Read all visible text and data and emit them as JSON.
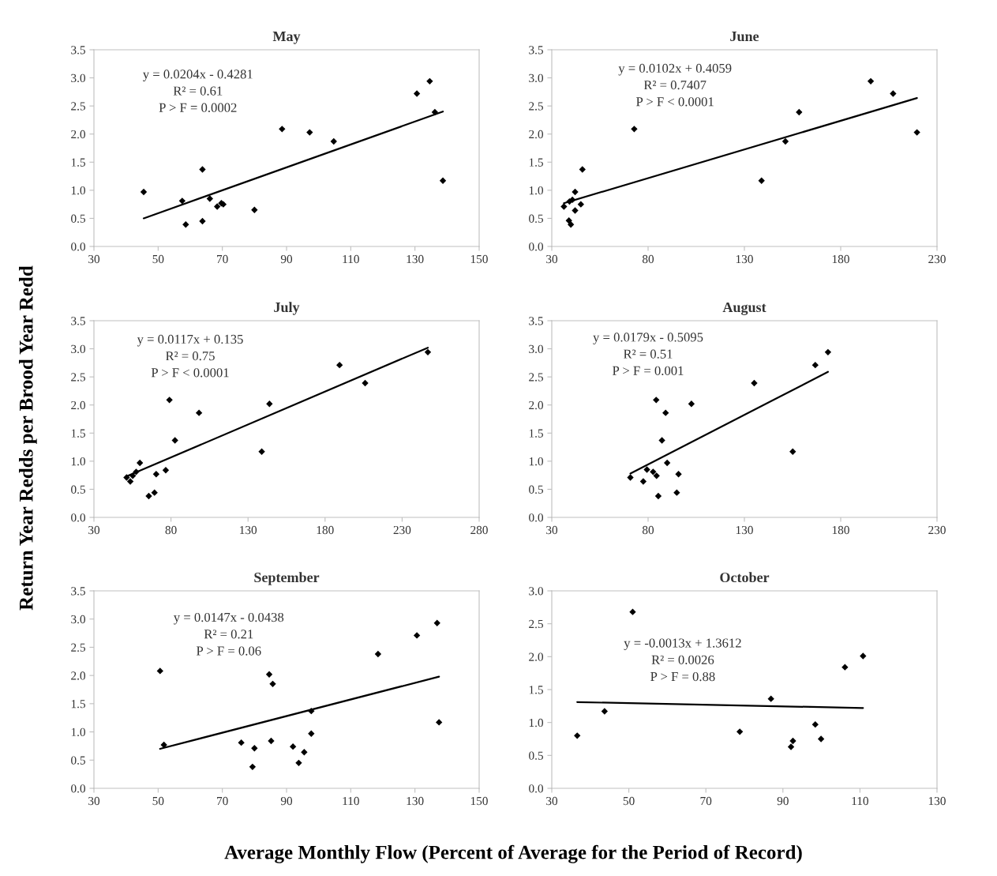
{
  "chart_data": [
    {
      "type": "scatter",
      "title": "May",
      "xlabel": "Average Monthly Flow (Percent of Average for the Period of Record)",
      "ylabel": "Return Year Redds per Brood Year Redd",
      "xlim": [
        30,
        150
      ],
      "xticks": [
        30,
        50,
        70,
        90,
        110,
        130,
        150
      ],
      "ylim": [
        0,
        3.5
      ],
      "yticks": [
        {
          "value": 0,
          "label": "0.0"
        },
        0.5,
        {
          "value": 1,
          "label": "1.0"
        },
        1.5,
        {
          "value": 2,
          "label": "2.0"
        },
        2.5,
        {
          "value": 3,
          "label": "3.0"
        },
        3.5
      ],
      "grid": false,
      "legend": false,
      "annotations": [
        "y = 0.0204x - 0.4281",
        "R² = 0.61",
        "P > F = 0.0002"
      ],
      "series": [
        {
          "marker": "diamond",
          "color": "#000000",
          "x": [
            45.5,
            57.5,
            58.6,
            63.8,
            63.8,
            66.1,
            68.4,
            69.7,
            70.3,
            80.0,
            88.6,
            97.2,
            104.7,
            130.6,
            134.6,
            136.2,
            138.7
          ],
          "values": [
            0.97,
            0.81,
            0.39,
            1.37,
            0.45,
            0.85,
            0.71,
            0.77,
            0.75,
            0.65,
            2.09,
            2.03,
            1.87,
            2.72,
            2.94,
            2.39,
            1.17
          ]
        },
        {
          "type": "line",
          "marker": "none",
          "color": "#000000",
          "x": [
            45.5,
            138.7
          ],
          "values": [
            0.5,
            2.4
          ]
        }
      ]
    },
    {
      "type": "scatter",
      "title": "June",
      "xlim": [
        30,
        230
      ],
      "xticks": [
        30,
        80,
        130,
        180,
        230
      ],
      "ylim": [
        0,
        3.5
      ],
      "yticks": [
        {
          "value": 0,
          "label": "0.0"
        },
        0.5,
        {
          "value": 1,
          "label": "1.0"
        },
        1.5,
        {
          "value": 2,
          "label": "2.0"
        },
        2.5,
        {
          "value": 3,
          "label": "3.0"
        },
        3.5
      ],
      "grid": false,
      "legend": false,
      "annotations": [
        "y = 0.0102x + 0.4059",
        "R² = 0.7407",
        "P > F < 0.0001"
      ],
      "series": [
        {
          "marker": "diamond",
          "color": "#000000",
          "x": [
            36.3,
            39.2,
            38.9,
            39.9,
            40.7,
            42.1,
            42.1,
            45.1,
            45.9,
            72.8,
            138.9,
            151.3,
            158.4,
            195.6,
            207.2,
            219.6
          ],
          "values": [
            0.71,
            0.8,
            0.46,
            0.39,
            0.83,
            0.97,
            0.64,
            0.75,
            1.37,
            2.09,
            1.17,
            1.87,
            2.39,
            2.94,
            2.72,
            2.03
          ]
        },
        {
          "type": "line",
          "marker": "none",
          "color": "#000000",
          "x": [
            36.3,
            219.6
          ],
          "values": [
            0.77,
            2.64
          ]
        }
      ]
    },
    {
      "type": "scatter",
      "title": "July",
      "xlim": [
        30,
        280
      ],
      "xticks": [
        30,
        80,
        130,
        180,
        230,
        280
      ],
      "ylim": [
        0,
        3.5
      ],
      "yticks": [
        {
          "value": 0,
          "label": "0.0"
        },
        0.5,
        {
          "value": 1,
          "label": "1.0"
        },
        1.5,
        {
          "value": 2,
          "label": "2.0"
        },
        2.5,
        {
          "value": 3,
          "label": "3.0"
        },
        3.5
      ],
      "grid": false,
      "legend": false,
      "annotations": [
        "y = 0.0117x + 0.135",
        "R² = 0.75",
        "P > F < 0.0001"
      ],
      "series": [
        {
          "marker": "diamond",
          "color": "#000000",
          "x": [
            51.2,
            53.6,
            55.2,
            57.4,
            59.8,
            65.6,
            69.3,
            70.4,
            76.6,
            79.0,
            82.6,
            98.2,
            138.9,
            143.9,
            189.4,
            206.0,
            246.7
          ],
          "values": [
            0.71,
            0.64,
            0.74,
            0.81,
            0.97,
            0.38,
            0.44,
            0.77,
            0.84,
            2.09,
            1.37,
            1.86,
            1.17,
            2.02,
            2.71,
            2.39,
            2.94
          ]
        },
        {
          "type": "line",
          "marker": "none",
          "color": "#000000",
          "x": [
            51.2,
            246.7
          ],
          "values": [
            0.73,
            3.02
          ]
        }
      ]
    },
    {
      "type": "scatter",
      "title": "August",
      "xlim": [
        30,
        230
      ],
      "xticks": [
        30,
        80,
        130,
        180,
        230
      ],
      "ylim": [
        0,
        3.5
      ],
      "yticks": [
        {
          "value": 0,
          "label": "0.0"
        },
        0.5,
        {
          "value": 1,
          "label": "1.0"
        },
        1.5,
        {
          "value": 2,
          "label": "2.0"
        },
        2.5,
        {
          "value": 3,
          "label": "3.0"
        },
        3.5
      ],
      "grid": false,
      "legend": false,
      "annotations": [
        "y = 0.0179x - 0.5095",
        "R² = 0.51",
        "P > F = 0.001"
      ],
      "series": [
        {
          "marker": "diamond",
          "color": "#000000",
          "x": [
            70.8,
            77.5,
            79.4,
            82.6,
            84.4,
            84.2,
            85.3,
            87.2,
            89.1,
            89.9,
            94.9,
            95.8,
            102.5,
            135.1,
            155.1,
            166.8,
            173.4
          ],
          "values": [
            0.71,
            0.64,
            0.85,
            0.81,
            0.74,
            2.09,
            0.38,
            1.37,
            1.86,
            0.97,
            0.44,
            0.77,
            2.02,
            2.39,
            1.17,
            2.71,
            2.94
          ]
        },
        {
          "type": "line",
          "marker": "none",
          "color": "#000000",
          "x": [
            70.8,
            173.4
          ],
          "values": [
            0.78,
            2.59
          ]
        }
      ]
    },
    {
      "type": "scatter",
      "title": "September",
      "xlim": [
        30,
        150
      ],
      "xticks": [
        30,
        50,
        70,
        90,
        110,
        130,
        150
      ],
      "ylim": [
        0,
        3.5
      ],
      "yticks": [
        {
          "value": 0,
          "label": "0.0"
        },
        0.5,
        {
          "value": 1,
          "label": "1.0"
        },
        1.5,
        {
          "value": 2,
          "label": "2.0"
        },
        2.5,
        {
          "value": 3,
          "label": "3.0"
        },
        3.5
      ],
      "grid": false,
      "legend": false,
      "annotations": [
        "y = 0.0147x - 0.0438",
        "R² = 0.21",
        "P > F = 0.06"
      ],
      "series": [
        {
          "marker": "diamond",
          "color": "#000000",
          "x": [
            50.6,
            51.8,
            75.9,
            80.0,
            79.4,
            84.6,
            85.2,
            85.7,
            92.0,
            93.8,
            95.5,
            97.7,
            97.7,
            118.5,
            130.6,
            136.9,
            137.5
          ],
          "values": [
            2.08,
            0.77,
            0.81,
            0.71,
            0.38,
            2.02,
            0.84,
            1.85,
            0.74,
            0.45,
            0.64,
            1.37,
            0.97,
            2.38,
            2.71,
            2.93,
            1.17
          ]
        },
        {
          "type": "line",
          "marker": "none",
          "color": "#000000",
          "x": [
            50.6,
            137.5
          ],
          "values": [
            0.7,
            1.98
          ]
        }
      ]
    },
    {
      "type": "scatter",
      "title": "October",
      "xlim": [
        30,
        130
      ],
      "xticks": [
        30,
        50,
        70,
        90,
        110,
        130
      ],
      "ylim": [
        0,
        3.0
      ],
      "yticks": [
        {
          "value": 0,
          "label": "0.0"
        },
        0.5,
        {
          "value": 1,
          "label": "1.0"
        },
        1.5,
        {
          "value": 2,
          "label": "2.0"
        },
        2.5,
        {
          "value": 3,
          "label": "3.0"
        }
      ],
      "grid": false,
      "legend": false,
      "annotations": [
        "y = -0.0013x + 1.3612",
        "R² = 0.0026",
        "P > F = 0.88"
      ],
      "series": [
        {
          "marker": "diamond",
          "color": "#000000",
          "x": [
            36.6,
            43.7,
            51.0,
            78.8,
            86.9,
            92.1,
            92.6,
            98.4,
            99.9,
            106.1,
            110.8
          ],
          "values": [
            0.8,
            1.17,
            2.68,
            0.86,
            1.36,
            0.63,
            0.72,
            0.97,
            0.75,
            1.84,
            2.01
          ]
        },
        {
          "type": "line",
          "marker": "none",
          "color": "#000000",
          "x": [
            36.6,
            110.8
          ],
          "values": [
            1.31,
            1.22
          ]
        }
      ]
    }
  ]
}
